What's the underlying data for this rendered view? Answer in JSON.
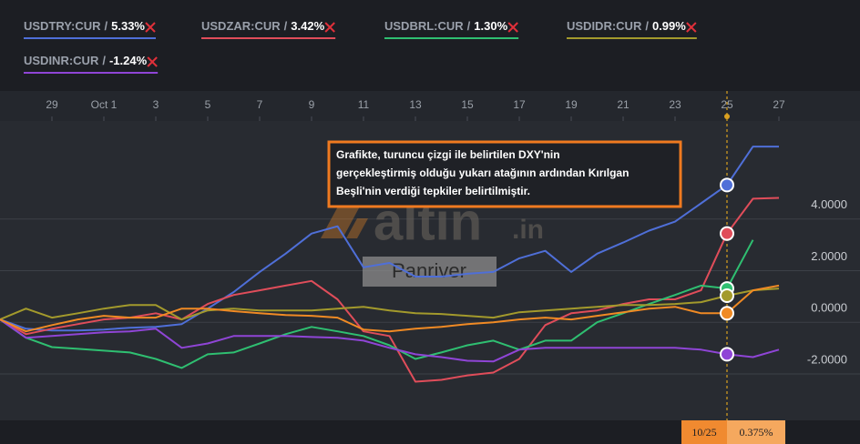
{
  "chart_data": {
    "type": "line",
    "legend_separator": "/",
    "categories": [
      null,
      null,
      "29",
      null,
      "Oct 1",
      null,
      "3",
      null,
      "5",
      null,
      "7",
      null,
      "9",
      null,
      "11",
      null,
      "13",
      null,
      "15",
      null,
      "17",
      null,
      "19",
      null,
      "21",
      null,
      "23",
      null,
      "25",
      null,
      "27"
    ],
    "series": [
      {
        "name": "USDTRY:CUR",
        "change": "5.33%",
        "color": "#4f6fd8",
        "values": [
          0.11,
          -0.25,
          -0.32,
          -0.32,
          -0.28,
          -0.21,
          -0.18,
          -0.07,
          0.53,
          1.17,
          1.95,
          2.66,
          3.44,
          3.72,
          2.13,
          2.3,
          1.77,
          1.77,
          1.88,
          1.95,
          2.48,
          2.77,
          1.95,
          2.66,
          3.09,
          3.55,
          3.9,
          4.61,
          5.32,
          6.81,
          6.81
        ]
      },
      {
        "name": "USDZAR:CUR",
        "change": "3.42%",
        "color": "#e04d5a",
        "values": [
          0.11,
          -0.46,
          -0.25,
          -0.07,
          0.11,
          0.18,
          0.35,
          0.11,
          0.71,
          1.06,
          1.24,
          1.42,
          1.6,
          0.89,
          -0.35,
          -0.53,
          -2.3,
          -2.23,
          -2.06,
          -1.95,
          -1.42,
          -0.11,
          0.35,
          0.46,
          0.71,
          0.89,
          0.89,
          1.24,
          3.44,
          4.79,
          4.82
        ]
      },
      {
        "name": "USDBRL:CUR",
        "change": "1.30%",
        "color": "#2fbf71",
        "values": [
          0.11,
          -0.6,
          -0.96,
          -1.03,
          -1.1,
          -1.17,
          -1.42,
          -1.77,
          -1.24,
          -1.17,
          -0.82,
          -0.46,
          -0.18,
          -0.35,
          -0.53,
          -0.89,
          -1.42,
          -1.17,
          -0.89,
          -0.71,
          -1.06,
          -0.71,
          -0.71,
          0,
          0.35,
          0.71,
          1.06,
          1.42,
          1.31,
          3.19,
          null
        ]
      },
      {
        "name": "USDIDR:CUR",
        "change": "0.99%",
        "color": "#a39a2c",
        "values": [
          0.11,
          0.53,
          0.18,
          0.35,
          0.53,
          0.67,
          0.67,
          0.11,
          0.46,
          0.53,
          0.46,
          0.46,
          0.46,
          0.53,
          0.6,
          0.46,
          0.35,
          0.32,
          0.25,
          0.18,
          0.39,
          0.46,
          0.53,
          0.6,
          0.67,
          0.67,
          0.71,
          0.78,
          1.03,
          1.24,
          1.31
        ]
      },
      {
        "name": "USDINR:CUR",
        "change": "-1.24%",
        "color": "#8f45d6",
        "values": [
          0.11,
          -0.6,
          -0.53,
          -0.46,
          -0.39,
          -0.35,
          -0.25,
          -0.99,
          -0.82,
          -0.53,
          -0.53,
          -0.53,
          -0.57,
          -0.6,
          -0.71,
          -0.99,
          -1.24,
          -1.35,
          -1.49,
          -1.52,
          -1.06,
          -0.99,
          -0.99,
          -0.99,
          -0.99,
          -0.99,
          -0.99,
          -1.06,
          -1.24,
          -1.35,
          -1.06
        ]
      },
      {
        "color": "#f08a24",
        "values": [
          0.11,
          -0.35,
          -0.11,
          0.11,
          0.25,
          0.18,
          0.18,
          0.53,
          0.53,
          0.43,
          0.35,
          0.28,
          0.25,
          0.18,
          -0.28,
          -0.35,
          -0.25,
          -0.18,
          -0.07,
          0,
          0.11,
          0.18,
          0.11,
          0.25,
          0.39,
          0.53,
          0.6,
          0.35,
          0.35,
          1.24,
          1.42
        ]
      }
    ],
    "ylim": [
      -3.8,
      7.8
    ],
    "yticks": [
      {
        "value": 4,
        "label": "4.0000"
      },
      {
        "value": 2,
        "label": "2.0000"
      },
      {
        "value": 0,
        "label": "0.0000"
      },
      {
        "value": -2,
        "label": "-2.0000"
      }
    ],
    "grid": true,
    "crosshair": {
      "index": 28,
      "date_label": "10/25",
      "value_label": "0.375%",
      "color": "#d9a020"
    },
    "annotation": [
      "Grafikte, turuncu çizgi ile belirtilen DXY'nin",
      "gerçekleştirmiş olduğu yukarı atağının ardından Kırılgan",
      "Beşli'nin verdiği tepkiler belirtilmiştir."
    ],
    "watermark": {
      "brand": "altin",
      "suffix": ".in",
      "caption": "Panriver"
    }
  }
}
